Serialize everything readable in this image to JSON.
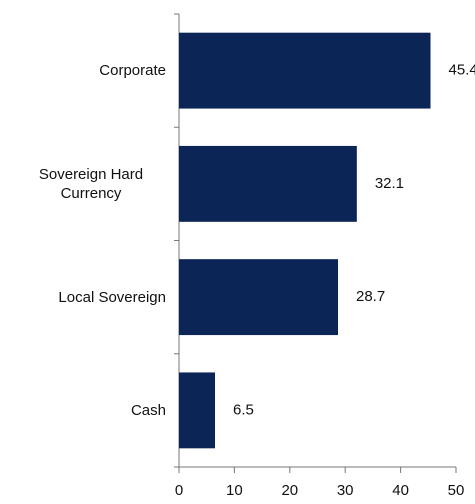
{
  "chart_data": {
    "type": "hbar",
    "categories": [
      "Corporate",
      "Sovereign Hard Currency",
      "Local Sovereign",
      "Cash"
    ],
    "values": [
      45.4,
      32.1,
      28.7,
      6.5
    ],
    "color": "#0b2556",
    "xlim": [
      0,
      50
    ],
    "xticks": [
      0,
      10,
      20,
      30,
      40,
      50
    ],
    "grid": false
  }
}
